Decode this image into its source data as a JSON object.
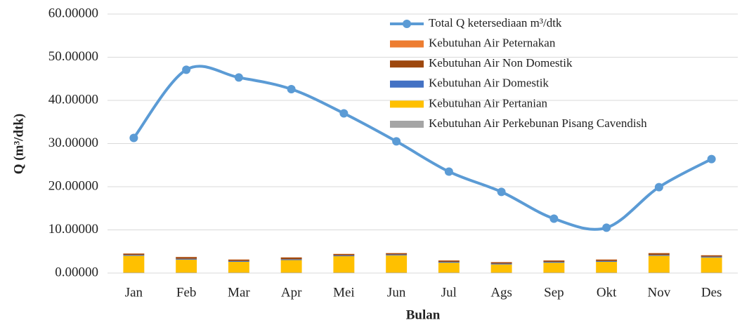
{
  "chart_data": {
    "type": "bar",
    "x_label": "Bulan",
    "y_label": "Q (m³/dtk)",
    "categories": [
      "Jan",
      "Feb",
      "Mar",
      "Apr",
      "Mei",
      "Jun",
      "Jul",
      "Ags",
      "Sep",
      "Okt",
      "Nov",
      "Des"
    ],
    "series": [
      {
        "name": "Kebutuhan Air Perkebunan Pisang Cavendish",
        "color": "#a5a5a5",
        "values": [
          0.1,
          0.1,
          0.1,
          0.1,
          0.1,
          0.1,
          0.1,
          0.1,
          0.1,
          0.1,
          0.1,
          0.1
        ]
      },
      {
        "name": "Kebutuhan Air Pertanian",
        "color": "#ffc000",
        "values": [
          3.9,
          3.0,
          2.5,
          2.9,
          3.8,
          4.0,
          2.3,
          1.9,
          2.3,
          2.5,
          3.9,
          3.5
        ]
      },
      {
        "name": "Kebutuhan Air Domestik",
        "color": "#4472c4",
        "values": [
          0.2,
          0.2,
          0.2,
          0.2,
          0.2,
          0.2,
          0.2,
          0.2,
          0.2,
          0.2,
          0.2,
          0.2
        ]
      },
      {
        "name": "Kebutuhan Air Non Domestik",
        "color": "#9e480e",
        "values": [
          0.3,
          0.4,
          0.3,
          0.4,
          0.3,
          0.3,
          0.3,
          0.3,
          0.3,
          0.3,
          0.4,
          0.3
        ]
      },
      {
        "name": "Kebutuhan Air Peternakan",
        "color": "#ed7d31",
        "values": [
          0.05,
          0.05,
          0.05,
          0.05,
          0.05,
          0.05,
          0.05,
          0.05,
          0.05,
          0.05,
          0.05,
          0.05
        ]
      },
      {
        "name": "Total Q ketersediaan m³/dtk",
        "color": "#5b9bd5",
        "type": "line",
        "values": [
          31.3,
          47.1,
          45.3,
          42.6,
          37.0,
          30.5,
          23.5,
          18.8,
          12.6,
          10.5,
          19.9,
          26.4
        ]
      }
    ],
    "ylim": [
      0,
      60
    ],
    "yticks": [
      {
        "value": 0,
        "label": "0.00000"
      },
      {
        "value": 10,
        "label": "10.00000"
      },
      {
        "value": 20,
        "label": "20.00000"
      },
      {
        "value": 30,
        "label": "30.00000"
      },
      {
        "value": 40,
        "label": "40.00000"
      },
      {
        "value": 50,
        "label": "50.00000"
      },
      {
        "value": 60,
        "label": "60.00000"
      }
    ],
    "grid": true
  }
}
